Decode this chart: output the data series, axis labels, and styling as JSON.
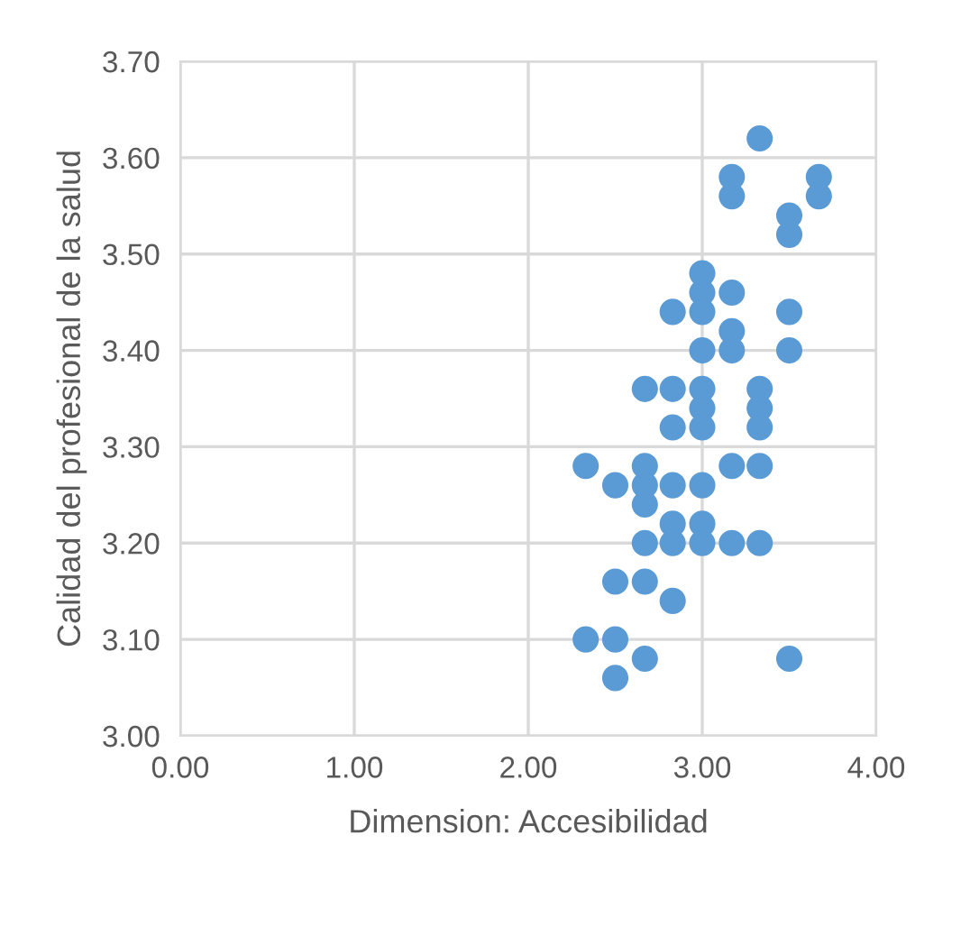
{
  "chart_data": {
    "type": "scatter",
    "xlabel": "Dimension: Accesibilidad",
    "ylabel": "Calidad del profesional de la salud",
    "series": [
      {
        "color": "#5b9bd5",
        "x": [
          3.33,
          3.17,
          3.17,
          3.67,
          3.67,
          3.5,
          3.5,
          3.0,
          3.0,
          3.17,
          2.83,
          3.0,
          3.5,
          3.17,
          3.0,
          3.17,
          3.5,
          2.67,
          2.83,
          3.0,
          3.33,
          3.0,
          3.33,
          2.83,
          3.0,
          3.33,
          2.33,
          2.67,
          3.17,
          3.33,
          2.5,
          2.67,
          2.83,
          3.0,
          2.67,
          2.83,
          3.0,
          2.67,
          2.83,
          3.0,
          3.17,
          3.33,
          2.5,
          2.67,
          2.83,
          2.33,
          2.5,
          2.67,
          3.5,
          2.5
        ],
        "values": [
          3.62,
          3.58,
          3.56,
          3.58,
          3.56,
          3.54,
          3.52,
          3.48,
          3.46,
          3.46,
          3.44,
          3.44,
          3.44,
          3.42,
          3.4,
          3.4,
          3.4,
          3.36,
          3.36,
          3.36,
          3.36,
          3.34,
          3.34,
          3.32,
          3.32,
          3.32,
          3.28,
          3.28,
          3.28,
          3.28,
          3.26,
          3.26,
          3.26,
          3.26,
          3.24,
          3.22,
          3.22,
          3.2,
          3.2,
          3.2,
          3.2,
          3.2,
          3.16,
          3.16,
          3.14,
          3.1,
          3.1,
          3.08,
          3.08,
          3.06
        ]
      }
    ],
    "xlim": [
      0,
      4
    ],
    "xticks": [
      {
        "value": 0,
        "label": "0.00"
      },
      {
        "value": 1,
        "label": "1.00"
      },
      {
        "value": 2,
        "label": "2.00"
      },
      {
        "value": 3,
        "label": "3.00"
      },
      {
        "value": 4,
        "label": "4.00"
      }
    ],
    "ylim": [
      3.0,
      3.7
    ],
    "yticks": [
      {
        "value": 3.0,
        "label": "3.00"
      },
      {
        "value": 3.1,
        "label": "3.10"
      },
      {
        "value": 3.2,
        "label": "3.20"
      },
      {
        "value": 3.3,
        "label": "3.30"
      },
      {
        "value": 3.4,
        "label": "3.40"
      },
      {
        "value": 3.5,
        "label": "3.50"
      },
      {
        "value": 3.6,
        "label": "3.60"
      },
      {
        "value": 3.7,
        "label": "3.70"
      }
    ],
    "grid": true,
    "marker": "circle"
  }
}
